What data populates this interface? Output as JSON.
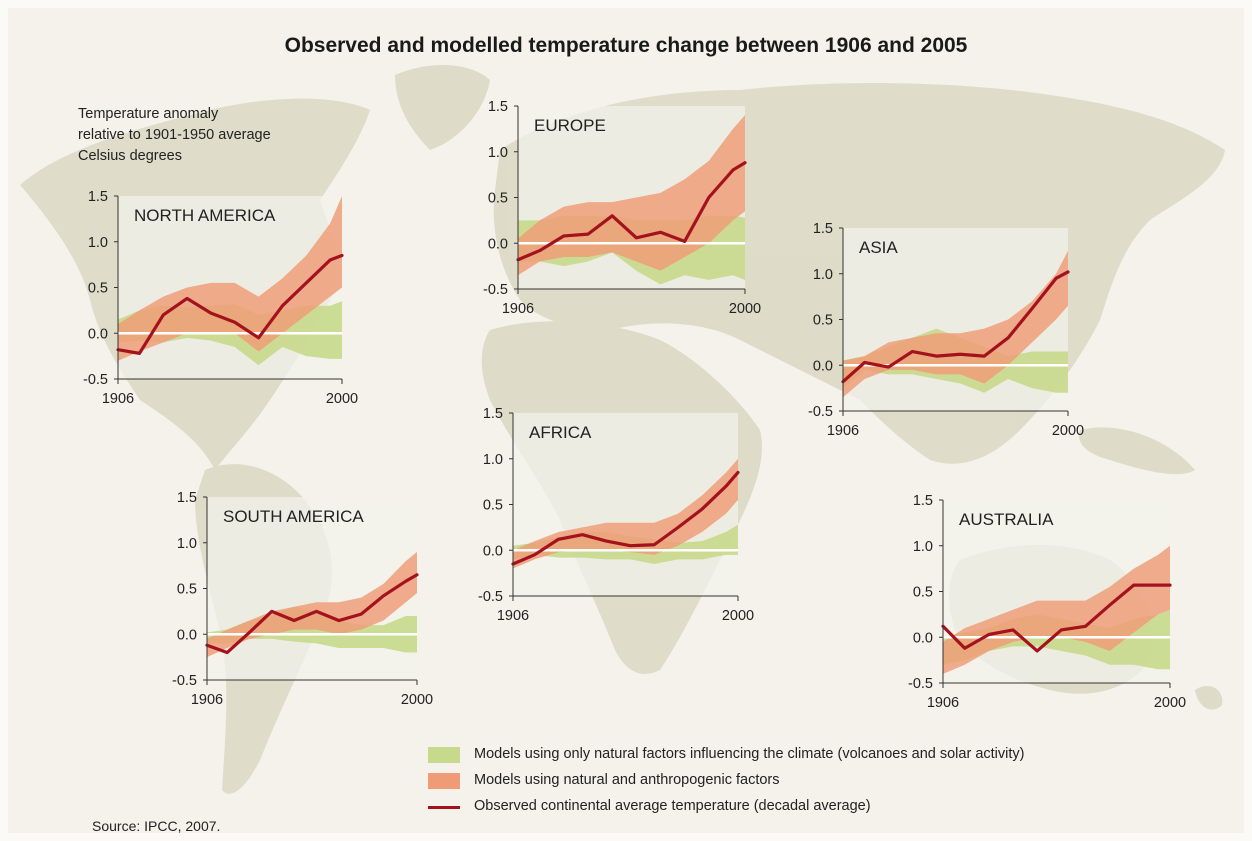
{
  "title": "Observed and modelled temperature change between 1906 and 2005",
  "units_text": [
    "Temperature anomaly",
    "relative to 1901-1950 average",
    "Celsius degrees"
  ],
  "source": "Source: IPCC, 2007.",
  "colors": {
    "natural": "#c7d98b",
    "anthropogenic": "#ef9b76",
    "observed": "#a3121d",
    "map_land": "#ddd9c6",
    "panel_bg": "#f3f2ec"
  },
  "legend": [
    {
      "kind": "band",
      "color": "#c7d98b",
      "label": "Models using only natural factors influencing the climate (volcanoes and solar activity)"
    },
    {
      "kind": "band",
      "color": "#ef9b76",
      "label": "Models using natural and anthropogenic factors"
    },
    {
      "kind": "line",
      "color": "#a3121d",
      "label": "Observed continental average temperature (decadal average)"
    }
  ],
  "chart_data": [
    {
      "type": "line",
      "title": "NORTH AMERICA",
      "ylim": [
        -0.5,
        1.5
      ],
      "yticks": [
        "1.5",
        "1.0",
        "0.5",
        "0.0",
        "-0.5"
      ],
      "xticks": [
        "1906",
        "2000"
      ],
      "x": [
        1906,
        1915,
        1925,
        1935,
        1945,
        1955,
        1965,
        1975,
        1985,
        1995,
        2000
      ],
      "series": [
        {
          "band": "natural",
          "lower": [
            -0.1,
            -0.08,
            -0.1,
            -0.05,
            -0.08,
            -0.15,
            -0.35,
            -0.15,
            -0.25,
            -0.28,
            -0.28
          ],
          "upper": [
            0.15,
            0.25,
            0.3,
            0.28,
            0.3,
            0.32,
            0.2,
            0.25,
            0.3,
            0.3,
            0.35
          ]
        },
        {
          "band": "anthropogenic",
          "lower": [
            -0.3,
            -0.2,
            -0.1,
            0.0,
            0.0,
            0.0,
            -0.2,
            0.0,
            0.2,
            0.4,
            0.5
          ],
          "upper": [
            0.1,
            0.25,
            0.4,
            0.5,
            0.55,
            0.55,
            0.4,
            0.6,
            0.85,
            1.2,
            1.5
          ]
        },
        {
          "line": "observed",
          "values": [
            -0.18,
            -0.22,
            0.2,
            0.38,
            0.22,
            0.12,
            -0.05,
            0.3,
            0.55,
            0.8,
            0.85
          ]
        }
      ]
    },
    {
      "type": "line",
      "title": "EUROPE",
      "ylim": [
        -0.5,
        1.5
      ],
      "yticks": [
        "1.5",
        "1.0",
        "0.5",
        "0.0",
        "-0.5"
      ],
      "xticks": [
        "1906",
        "2000"
      ],
      "x": [
        1906,
        1915,
        1925,
        1935,
        1945,
        1955,
        1965,
        1975,
        1985,
        1995,
        2000
      ],
      "series": [
        {
          "band": "natural",
          "lower": [
            -0.2,
            -0.2,
            -0.25,
            -0.2,
            -0.1,
            -0.3,
            -0.45,
            -0.35,
            -0.4,
            -0.35,
            -0.4
          ],
          "upper": [
            0.25,
            0.25,
            0.3,
            0.3,
            0.3,
            0.25,
            0.25,
            0.25,
            0.3,
            0.3,
            0.28
          ]
        },
        {
          "band": "anthropogenic",
          "lower": [
            -0.35,
            -0.2,
            -0.15,
            -0.15,
            -0.1,
            -0.2,
            -0.3,
            -0.15,
            0.0,
            0.25,
            0.35
          ],
          "upper": [
            0.05,
            0.25,
            0.4,
            0.45,
            0.45,
            0.5,
            0.55,
            0.7,
            0.9,
            1.25,
            1.4
          ]
        },
        {
          "line": "observed",
          "values": [
            -0.18,
            -0.08,
            0.08,
            0.1,
            0.3,
            0.06,
            0.12,
            0.02,
            0.5,
            0.8,
            0.88
          ]
        }
      ]
    },
    {
      "type": "line",
      "title": "ASIA",
      "ylim": [
        -0.5,
        1.5
      ],
      "yticks": [
        "1.5",
        "1.0",
        "0.5",
        "0.0",
        "-0.5"
      ],
      "xticks": [
        "1906",
        "2000"
      ],
      "x": [
        1906,
        1915,
        1925,
        1935,
        1945,
        1955,
        1965,
        1975,
        1985,
        1995,
        2000
      ],
      "series": [
        {
          "band": "natural",
          "lower": [
            -0.25,
            -0.05,
            -0.1,
            -0.1,
            -0.15,
            -0.2,
            -0.3,
            -0.15,
            -0.25,
            -0.3,
            -0.3
          ],
          "upper": [
            0.05,
            0.1,
            0.2,
            0.3,
            0.4,
            0.3,
            0.2,
            0.1,
            0.15,
            0.15,
            0.15
          ]
        },
        {
          "band": "anthropogenic",
          "lower": [
            -0.35,
            -0.15,
            -0.05,
            -0.05,
            -0.1,
            -0.1,
            -0.2,
            0.0,
            0.25,
            0.5,
            0.65
          ],
          "upper": [
            0.05,
            0.1,
            0.25,
            0.3,
            0.35,
            0.35,
            0.4,
            0.5,
            0.7,
            1.0,
            1.25
          ]
        },
        {
          "line": "observed",
          "values": [
            -0.18,
            0.03,
            -0.02,
            0.15,
            0.1,
            0.12,
            0.1,
            0.3,
            0.62,
            0.95,
            1.02
          ]
        }
      ]
    },
    {
      "type": "line",
      "title": "AFRICA",
      "ylim": [
        -0.5,
        1.5
      ],
      "yticks": [
        "1.5",
        "1.0",
        "0.5",
        "0.0",
        "-0.5"
      ],
      "xticks": [
        "1906",
        "2000"
      ],
      "x": [
        1906,
        1915,
        1925,
        1935,
        1945,
        1955,
        1965,
        1975,
        1985,
        1995,
        2000
      ],
      "series": [
        {
          "band": "natural",
          "lower": [
            -0.1,
            -0.05,
            -0.08,
            -0.08,
            -0.1,
            -0.1,
            -0.15,
            -0.1,
            -0.1,
            -0.05,
            -0.05
          ],
          "upper": [
            0.05,
            0.08,
            0.15,
            0.2,
            0.2,
            0.15,
            0.12,
            0.08,
            0.1,
            0.2,
            0.28
          ]
        },
        {
          "band": "anthropogenic",
          "lower": [
            -0.2,
            -0.1,
            -0.02,
            0.0,
            0.0,
            -0.02,
            -0.05,
            0.05,
            0.2,
            0.4,
            0.55
          ],
          "upper": [
            0.0,
            0.1,
            0.2,
            0.25,
            0.3,
            0.3,
            0.3,
            0.4,
            0.6,
            0.85,
            1.0
          ]
        },
        {
          "line": "observed",
          "values": [
            -0.15,
            -0.05,
            0.12,
            0.17,
            0.1,
            0.05,
            0.06,
            0.25,
            0.45,
            0.7,
            0.85
          ]
        }
      ]
    },
    {
      "type": "line",
      "title": "SOUTH AMERICA",
      "ylim": [
        -0.5,
        1.5
      ],
      "yticks": [
        "1.5",
        "1.0",
        "0.5",
        "0.0",
        "-0.5"
      ],
      "xticks": [
        "1906",
        "2000"
      ],
      "x": [
        1906,
        1915,
        1925,
        1935,
        1945,
        1955,
        1965,
        1975,
        1985,
        1995,
        2000
      ],
      "series": [
        {
          "band": "natural",
          "lower": [
            -0.1,
            -0.1,
            -0.05,
            -0.05,
            -0.08,
            -0.1,
            -0.15,
            -0.15,
            -0.15,
            -0.2,
            -0.2
          ],
          "upper": [
            0.02,
            0.05,
            0.15,
            0.2,
            0.3,
            0.25,
            0.15,
            0.1,
            0.1,
            0.2,
            0.2
          ]
        },
        {
          "band": "anthropogenic",
          "lower": [
            -0.25,
            -0.15,
            -0.05,
            0.0,
            0.05,
            0.05,
            0.0,
            0.05,
            0.15,
            0.35,
            0.45
          ],
          "upper": [
            -0.05,
            0.05,
            0.15,
            0.25,
            0.3,
            0.35,
            0.35,
            0.4,
            0.55,
            0.8,
            0.9
          ]
        },
        {
          "line": "observed",
          "values": [
            -0.12,
            -0.2,
            0.02,
            0.25,
            0.15,
            0.25,
            0.15,
            0.22,
            0.42,
            0.58,
            0.65
          ]
        }
      ]
    },
    {
      "type": "line",
      "title": "AUSTRALIA",
      "ylim": [
        -0.5,
        1.5
      ],
      "yticks": [
        "1.5",
        "1.0",
        "0.5",
        "0.0",
        "-0.5"
      ],
      "xticks": [
        "1906",
        "2000"
      ],
      "x": [
        1906,
        1915,
        1925,
        1935,
        1945,
        1955,
        1965,
        1975,
        1985,
        1995,
        2000
      ],
      "series": [
        {
          "band": "natural",
          "lower": [
            -0.3,
            -0.25,
            -0.15,
            -0.1,
            -0.1,
            -0.15,
            -0.2,
            -0.3,
            -0.3,
            -0.35,
            -0.35
          ],
          "upper": [
            0.0,
            0.05,
            0.1,
            0.2,
            0.25,
            0.2,
            0.15,
            0.1,
            0.2,
            0.25,
            0.3
          ]
        },
        {
          "band": "anthropogenic",
          "lower": [
            -0.4,
            -0.3,
            -0.15,
            -0.05,
            0.0,
            0.0,
            -0.05,
            -0.15,
            0.05,
            0.25,
            0.3
          ],
          "upper": [
            -0.05,
            0.1,
            0.2,
            0.3,
            0.4,
            0.4,
            0.4,
            0.55,
            0.75,
            0.9,
            1.0
          ]
        },
        {
          "line": "observed",
          "values": [
            0.12,
            -0.12,
            0.03,
            0.08,
            -0.15,
            0.08,
            0.12,
            0.35,
            0.57,
            0.57,
            0.57
          ]
        }
      ]
    }
  ]
}
